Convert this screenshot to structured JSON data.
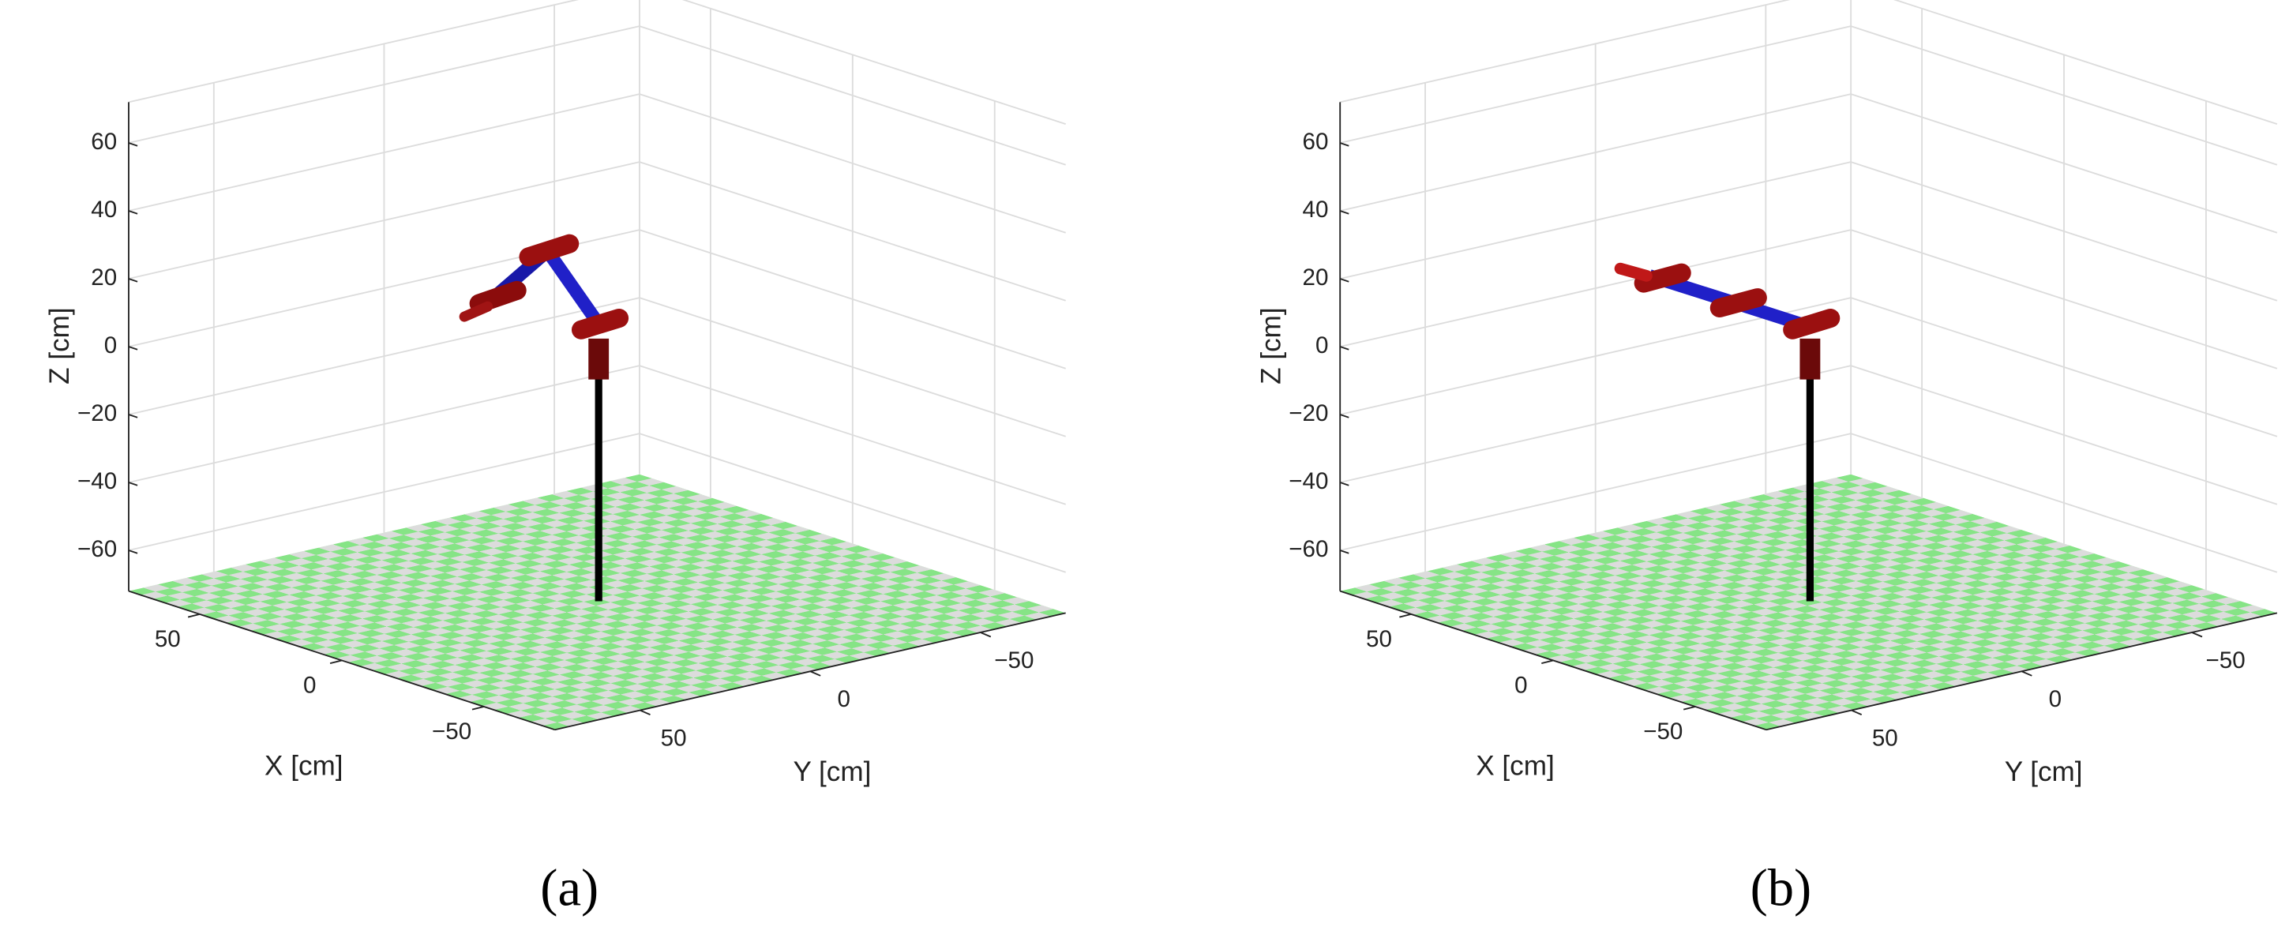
{
  "chart_data": [
    {
      "type": "3d",
      "panel_label": "(a)",
      "xlabel": "X [cm]",
      "ylabel": "Y [cm]",
      "zlabel": "Z [cm]",
      "xlim": [
        -75,
        75
      ],
      "ylim": [
        -75,
        75
      ],
      "zlim": [
        -72,
        72
      ],
      "xticks": [
        {
          "value": -50,
          "label": "−50"
        },
        0,
        50
      ],
      "yticks": [
        {
          "value": -50,
          "label": "−50"
        },
        0,
        50
      ],
      "zticks": [
        {
          "value": -60,
          "label": "−60"
        },
        {
          "value": -40,
          "label": "−40"
        },
        {
          "value": -20,
          "label": "−20"
        },
        0,
        20,
        40,
        60
      ],
      "grid": true
    },
    {
      "type": "3d",
      "panel_label": "(b)",
      "xlabel": "X [cm]",
      "ylabel": "Y [cm]",
      "zlabel": "Z [cm]",
      "xlim": [
        -75,
        75
      ],
      "ylim": [
        -75,
        75
      ],
      "zlim": [
        -72,
        72
      ],
      "xticks": [
        {
          "value": -50,
          "label": "−50"
        },
        0,
        50
      ],
      "yticks": [
        {
          "value": -50,
          "label": "−50"
        },
        0,
        50
      ],
      "zticks": [
        {
          "value": -60,
          "label": "−60"
        },
        {
          "value": -40,
          "label": "−40"
        },
        {
          "value": -20,
          "label": "−20"
        },
        0,
        20,
        40,
        60
      ],
      "grid": true
    }
  ]
}
